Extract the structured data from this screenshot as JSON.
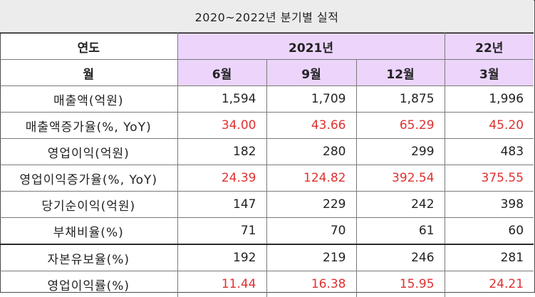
{
  "title": "2020~2022년 분기별 실적",
  "header": {
    "year_label": "연도",
    "year_2021": "2021년",
    "year_22": "22년",
    "month_label": "월",
    "months": [
      "6월",
      "9월",
      "12월",
      "3월"
    ]
  },
  "rows": [
    {
      "label": "매출액(억원)",
      "values": [
        "1,594",
        "1,709",
        "1,875",
        "1,996"
      ],
      "highlight": false
    },
    {
      "label": "매출액증가율(%, YoY)",
      "values": [
        "34.00",
        "43.66",
        "65.29",
        "45.20"
      ],
      "highlight": true
    },
    {
      "label": "영업이익(억원)",
      "values": [
        "182",
        "280",
        "299",
        "483"
      ],
      "highlight": false
    },
    {
      "label": "영업이익증가율(%, YoY)",
      "values": [
        "24.39",
        "124.82",
        "392.54",
        "375.55"
      ],
      "highlight": true
    },
    {
      "label": "당기순이익(억원)",
      "values": [
        "147",
        "229",
        "242",
        "398"
      ],
      "highlight": false
    },
    {
      "label": "부채비율(%)",
      "values": [
        "71",
        "70",
        "61",
        "60"
      ],
      "highlight": false
    },
    {
      "label": "자본유보율(%)",
      "values": [
        "192",
        "219",
        "246",
        "281"
      ],
      "highlight": false
    },
    {
      "label": "영업이익률(%)",
      "values": [
        "11.44",
        "16.38",
        "15.95",
        "24.21"
      ],
      "highlight": true
    }
  ],
  "colors": {
    "header_purple": "#ecd4fb",
    "title_bg": "#ececec",
    "highlight_red": "#e03030"
  }
}
